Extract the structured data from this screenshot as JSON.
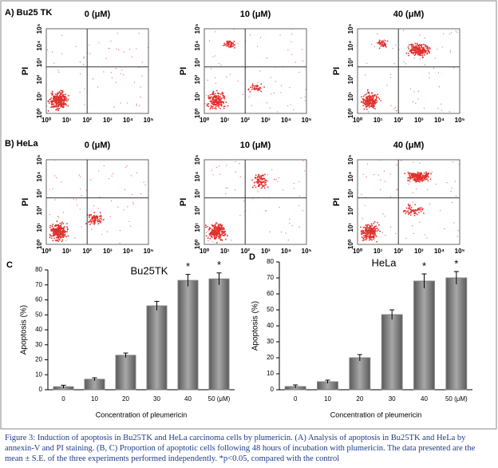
{
  "figure": {
    "panel_a": {
      "label": "A) Bu25 TK",
      "plots": [
        {
          "title": "0 (μM)"
        },
        {
          "title": "10 (μM)"
        },
        {
          "title": "40 (μM)"
        }
      ]
    },
    "panel_b": {
      "label": "B) HeLa",
      "plots": [
        {
          "title": "0 (μM)"
        },
        {
          "title": "10 (μM)"
        },
        {
          "title": "40 (μM)"
        }
      ]
    },
    "axis_ticks": [
      "10⁰",
      "10¹",
      "10²",
      "10³",
      "10⁴",
      "10⁵"
    ],
    "y_axis_label": "PI"
  },
  "chart_data": [
    {
      "type": "bar",
      "panel_label": "C",
      "title": "Bu25TK",
      "y_label": "Apoptosis (%)",
      "x_label": "Concentration of pleumericin",
      "categories": [
        "0",
        "10",
        "20",
        "30",
        "40",
        "50 (μM)"
      ],
      "values": [
        2,
        7,
        23,
        56,
        73,
        74
      ],
      "errors": [
        1,
        1,
        1.5,
        3,
        4,
        4
      ],
      "annotations": [
        {
          "category": "40",
          "text": "*"
        },
        {
          "category": "50 (μM)",
          "text": "*"
        }
      ],
      "ylim": [
        0,
        80
      ],
      "yticks": [
        0,
        10,
        20,
        30,
        40,
        50,
        60,
        70,
        80
      ],
      "color": "#808080"
    },
    {
      "type": "bar",
      "panel_label": "D",
      "title": "HeLa",
      "y_label": "Apoptosis (%)",
      "x_label": "Concentration of pleumericin",
      "categories": [
        "0",
        "10",
        "20",
        "30",
        "40",
        "50 (μM)"
      ],
      "values": [
        2,
        5,
        20,
        47,
        68,
        70
      ],
      "errors": [
        1,
        1,
        2,
        3,
        4.5,
        4
      ],
      "annotations": [
        {
          "category": "40",
          "text": "*"
        },
        {
          "category": "50 (μM)",
          "text": "*"
        }
      ],
      "ylim": [
        0,
        80
      ],
      "yticks": [
        0,
        10,
        20,
        30,
        40,
        50,
        60,
        70,
        80
      ],
      "color": "#808080"
    }
  ],
  "caption": "Figure 3: Induction of apoptosis in Bu25TK and HeLa carcinoma cells by plumericin. (A) Analysis of apoptosis in Bu25TK and HeLa by annexin-V and PI staining. (B, C) Proportion of apoptotic cells following 48 hours of incubation with plumericin.  The data presented are the mean ± S.E. of the three experiments performed independently. *p<0.05, compared with the control"
}
